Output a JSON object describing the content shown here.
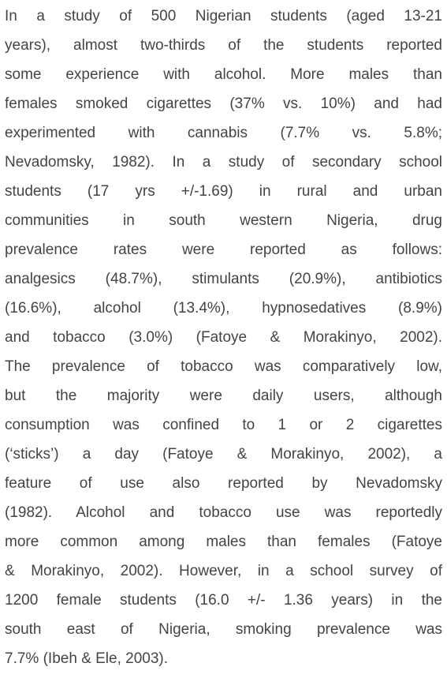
{
  "paragraph": {
    "lines": [
      "In a study of 500 Nigerian students (aged 13-21",
      "years), almost two-thirds of the students reported",
      "some experience with alcohol. More males than",
      "females smoked cigarettes (37% vs. 10%) and had",
      "experimented with cannabis (7.7% vs. 5.8%;",
      "Nevadomsky, 1982). In a study of secondary school",
      "students (17 yrs +/-1.69) in rural and urban",
      "communities in south western Nigeria, drug",
      "prevalence rates were reported as follows:",
      "analgesics (48.7%), stimulants (20.9%), antibiotics",
      "(16.6%), alcohol (13.4%), hypnosedatives (8.9%)",
      "and tobacco (3.0%) (Fatoye & Morakinyo, 2002).",
      "The prevalence of tobacco was comparatively low,",
      "but the majority were daily users, although",
      "consumption was confined to 1 or 2 cigarettes",
      "(‘sticks’) a day (Fatoye & Morakinyo, 2002), a",
      "feature of use also reported by Nevadomsky",
      "(1982). Alcohol and tobacco use was reportedly",
      "more common among males than females (Fatoye",
      "& Morakinyo, 2002). However, in a school survey of",
      "1200 female students (16.0 +/- 1.36 years) in the",
      "south east of Nigeria, smoking prevalence was",
      "7.7% (Ibeh & Ele, 2003)."
    ]
  }
}
